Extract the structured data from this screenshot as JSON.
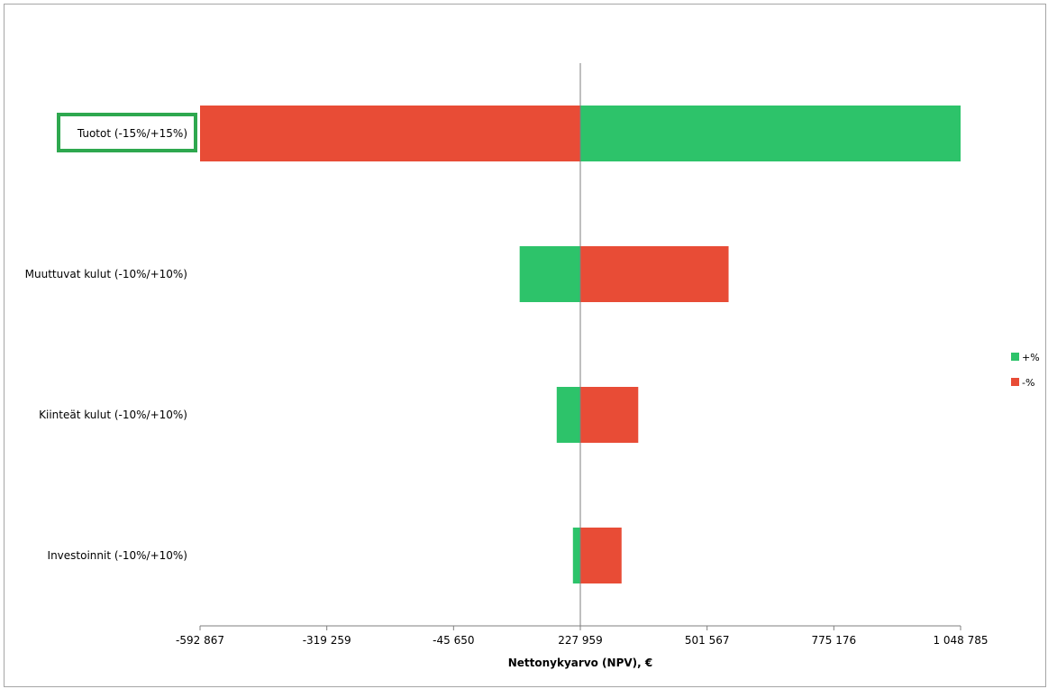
{
  "chart_data": {
    "type": "bar",
    "orientation": "horizontal",
    "variant": "tornado",
    "categories": [
      "Tuotot (-15%/+15%)",
      "Muuttuvat kulut (-10%/+10%)",
      "Kiinteät kulut (-10%/+10%)",
      "Investoinnit (-10%/+10%)"
    ],
    "baseline": 227959,
    "series": [
      {
        "name": "+%",
        "color": "#2dc36a",
        "values": [
          1048785,
          97000,
          177000,
          212000
        ]
      },
      {
        "name": "-%",
        "color": "#e84c36",
        "values": [
          -592867,
          548000,
          353000,
          317000
        ]
      }
    ],
    "highlighted_category": "Tuotot (-15%/+15%)",
    "highlight_color": "#2ea84f",
    "xlabel": "Nettonykyarvo (NPV), €",
    "xlim": [
      -592867,
      1048785
    ],
    "xticks": [
      -592867,
      -319259,
      -45650,
      227959,
      501567,
      775176,
      1048785
    ],
    "xtick_labels": [
      "-592 867",
      "-319 259",
      "-45 650",
      "227 959",
      "501 567",
      "775 176",
      "1 048 785"
    ],
    "grid": false,
    "legend_position": "right"
  }
}
